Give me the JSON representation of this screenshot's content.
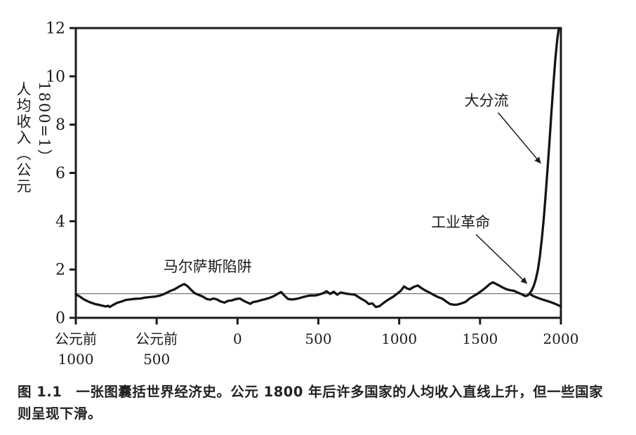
{
  "figure": {
    "caption": {
      "line1": "图 1.1　一张图囊括世界经济史。公元 1800 年后许多国家的人均收入直线上升，但一些国家",
      "line2": "则呈现下滑。"
    }
  },
  "colors": {
    "ink": "#1b1b1b",
    "reference_line": "#6e6e6e",
    "background": "#ffffff"
  },
  "chart_data": {
    "type": "line",
    "title": "",
    "xlabel": "",
    "ylabel": "人均收入（公元1800=1）",
    "xlim": [
      -1000,
      2000
    ],
    "ylim": [
      0,
      12
    ],
    "grid": false,
    "legend": "none",
    "frame": "full-box",
    "y_ticks": [
      0,
      2,
      4,
      6,
      8,
      10,
      12
    ],
    "x_ticks": [
      {
        "value": -1000,
        "label": [
          "公元前",
          "1000"
        ]
      },
      {
        "value": -500,
        "label": [
          "公元前",
          "500"
        ]
      },
      {
        "value": 0,
        "label": [
          "0"
        ]
      },
      {
        "value": 500,
        "label": [
          "500"
        ]
      },
      {
        "value": 1000,
        "label": [
          "1000"
        ]
      },
      {
        "value": 1500,
        "label": [
          "1500"
        ]
      },
      {
        "value": 2000,
        "label": [
          "2000"
        ]
      }
    ],
    "reference_line": {
      "y": 1
    },
    "series": [
      {
        "name": "malthusian-era",
        "points": [
          [
            -1000,
            0.97
          ],
          [
            -975,
            0.88
          ],
          [
            -950,
            0.76
          ],
          [
            -915,
            0.65
          ],
          [
            -880,
            0.57
          ],
          [
            -845,
            0.52
          ],
          [
            -815,
            0.47
          ],
          [
            -800,
            0.5
          ],
          [
            -790,
            0.45
          ],
          [
            -765,
            0.55
          ],
          [
            -745,
            0.62
          ],
          [
            -715,
            0.68
          ],
          [
            -690,
            0.74
          ],
          [
            -655,
            0.77
          ],
          [
            -630,
            0.79
          ],
          [
            -600,
            0.8
          ],
          [
            -570,
            0.84
          ],
          [
            -540,
            0.86
          ],
          [
            -510,
            0.88
          ],
          [
            -480,
            0.92
          ],
          [
            -450,
            1.0
          ],
          [
            -420,
            1.1
          ],
          [
            -390,
            1.18
          ],
          [
            -360,
            1.3
          ],
          [
            -330,
            1.4
          ],
          [
            -310,
            1.32
          ],
          [
            -290,
            1.18
          ],
          [
            -265,
            1.02
          ],
          [
            -240,
            0.95
          ],
          [
            -215,
            0.88
          ],
          [
            -190,
            0.78
          ],
          [
            -170,
            0.75
          ],
          [
            -150,
            0.8
          ],
          [
            -130,
            0.77
          ],
          [
            -105,
            0.68
          ],
          [
            -80,
            0.63
          ],
          [
            -60,
            0.7
          ],
          [
            -35,
            0.72
          ],
          [
            -10,
            0.78
          ],
          [
            15,
            0.8
          ],
          [
            40,
            0.7
          ],
          [
            65,
            0.62
          ],
          [
            80,
            0.58
          ],
          [
            95,
            0.65
          ],
          [
            120,
            0.68
          ],
          [
            145,
            0.73
          ],
          [
            170,
            0.77
          ],
          [
            200,
            0.83
          ],
          [
            225,
            0.9
          ],
          [
            250,
            1.0
          ],
          [
            270,
            1.07
          ],
          [
            290,
            0.92
          ],
          [
            313,
            0.78
          ],
          [
            335,
            0.76
          ],
          [
            360,
            0.78
          ],
          [
            385,
            0.82
          ],
          [
            410,
            0.87
          ],
          [
            443,
            0.92
          ],
          [
            486,
            0.93
          ],
          [
            530,
            1.02
          ],
          [
            551,
            1.1
          ],
          [
            573,
            0.99
          ],
          [
            595,
            1.08
          ],
          [
            617,
            0.96
          ],
          [
            638,
            1.05
          ],
          [
            682,
            0.99
          ],
          [
            725,
            0.96
          ],
          [
            768,
            0.78
          ],
          [
            790,
            0.7
          ],
          [
            812,
            0.57
          ],
          [
            834,
            0.6
          ],
          [
            855,
            0.45
          ],
          [
            877,
            0.48
          ],
          [
            920,
            0.7
          ],
          [
            964,
            0.88
          ],
          [
            1007,
            1.1
          ],
          [
            1030,
            1.3
          ],
          [
            1048,
            1.22
          ],
          [
            1065,
            1.18
          ],
          [
            1090,
            1.28
          ],
          [
            1115,
            1.34
          ],
          [
            1140,
            1.22
          ],
          [
            1165,
            1.12
          ],
          [
            1190,
            1.04
          ],
          [
            1215,
            0.94
          ],
          [
            1240,
            0.86
          ],
          [
            1265,
            0.8
          ],
          [
            1290,
            0.68
          ],
          [
            1315,
            0.57
          ],
          [
            1340,
            0.54
          ],
          [
            1360,
            0.55
          ],
          [
            1385,
            0.6
          ],
          [
            1410,
            0.66
          ],
          [
            1435,
            0.8
          ],
          [
            1460,
            0.9
          ],
          [
            1485,
            1.0
          ],
          [
            1510,
            1.12
          ],
          [
            1535,
            1.25
          ],
          [
            1560,
            1.4
          ],
          [
            1580,
            1.47
          ],
          [
            1600,
            1.4
          ],
          [
            1620,
            1.33
          ],
          [
            1645,
            1.24
          ],
          [
            1665,
            1.18
          ],
          [
            1690,
            1.14
          ],
          [
            1710,
            1.12
          ],
          [
            1735,
            1.04
          ],
          [
            1760,
            0.97
          ],
          [
            1780,
            0.9
          ],
          [
            1795,
            0.93
          ],
          [
            1805,
            1.0
          ]
        ]
      },
      {
        "name": "post-1800-rise",
        "points": [
          [
            1805,
            1.0
          ],
          [
            1818,
            1.12
          ],
          [
            1832,
            1.32
          ],
          [
            1845,
            1.6
          ],
          [
            1858,
            2.0
          ],
          [
            1870,
            2.55
          ],
          [
            1882,
            3.25
          ],
          [
            1894,
            4.1
          ],
          [
            1906,
            5.1
          ],
          [
            1918,
            6.2
          ],
          [
            1930,
            7.35
          ],
          [
            1942,
            8.55
          ],
          [
            1954,
            9.7
          ],
          [
            1966,
            10.75
          ],
          [
            1978,
            11.55
          ],
          [
            1988,
            12.0
          ]
        ]
      },
      {
        "name": "post-1800-decline",
        "points": [
          [
            1805,
            1.0
          ],
          [
            1830,
            0.9
          ],
          [
            1860,
            0.82
          ],
          [
            1890,
            0.75
          ],
          [
            1920,
            0.69
          ],
          [
            1950,
            0.62
          ],
          [
            1975,
            0.55
          ],
          [
            2000,
            0.47
          ]
        ]
      }
    ],
    "annotations": [
      {
        "id": "great-divergence",
        "label": "大分流",
        "text_at": [
          1540,
          9.0
        ],
        "arrow_from": [
          1612,
          8.5
        ],
        "arrow_to": [
          1875,
          6.4
        ]
      },
      {
        "id": "industrial-revolution",
        "label": "工业革命",
        "text_at": [
          1380,
          3.95
        ],
        "arrow_from": [
          1475,
          3.45
        ],
        "arrow_to": [
          1790,
          1.42
        ]
      },
      {
        "id": "malthusian-trap",
        "label": "马尔萨斯陷阱",
        "text_at": [
          -185,
          2.12
        ]
      }
    ]
  }
}
